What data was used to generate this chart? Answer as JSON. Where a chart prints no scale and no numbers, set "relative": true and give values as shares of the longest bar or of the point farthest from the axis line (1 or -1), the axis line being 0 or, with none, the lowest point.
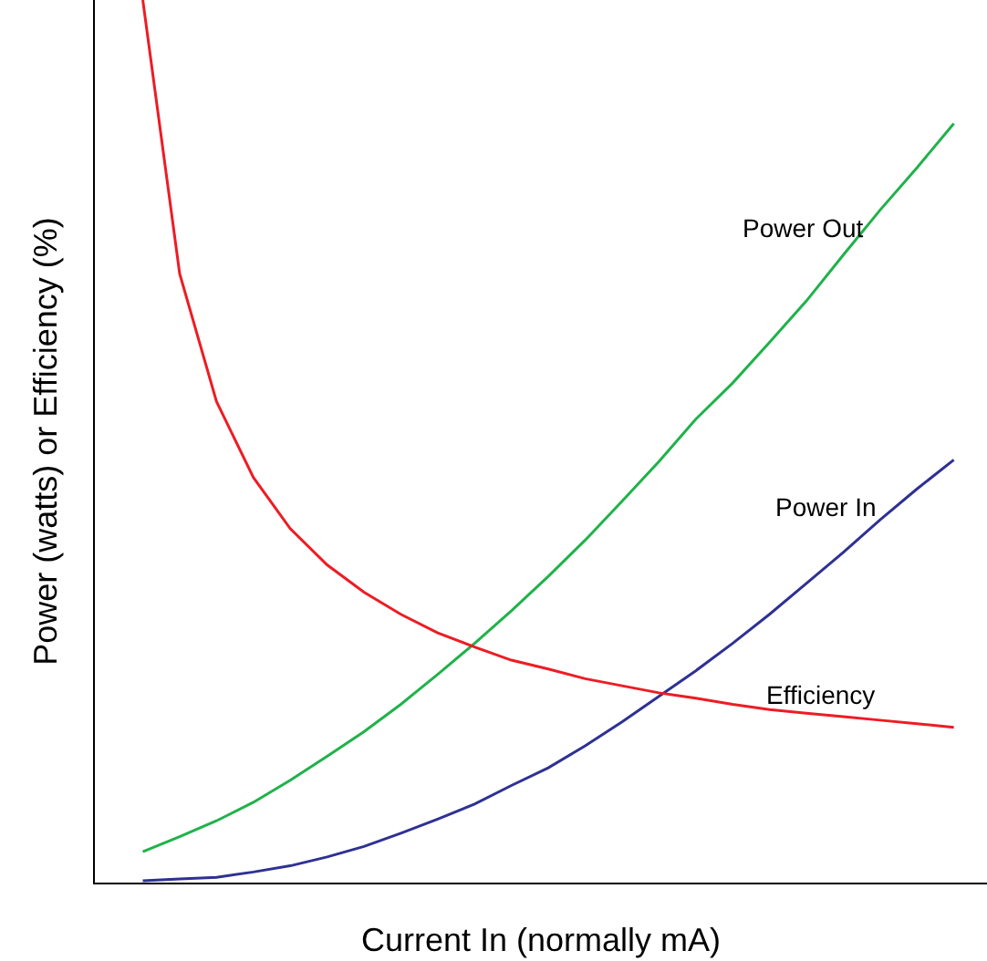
{
  "chart_data": {
    "type": "line",
    "relative": true,
    "xlabel": "Current In (normally mA)",
    "ylabel": "Power (watts) or Efficiency (%)",
    "grid": false,
    "legend": false,
    "marker": "none",
    "line_style": "solid",
    "categories": [
      null,
      null,
      null,
      null,
      null,
      null,
      null,
      null,
      null,
      null,
      null,
      null,
      null,
      null,
      null,
      null,
      null,
      null,
      null,
      null,
      null,
      null,
      null
    ],
    "series": [
      {
        "name": "Power Out",
        "color": "#1fb24a",
        "values": [
          0.035,
          0.052,
          0.07,
          0.091,
          0.116,
          0.143,
          0.171,
          0.202,
          0.236,
          0.271,
          0.308,
          0.347,
          0.388,
          0.432,
          0.477,
          0.525,
          0.566,
          0.612,
          0.659,
          0.711,
          0.762,
          0.81,
          0.86
        ]
      },
      {
        "name": "Power In",
        "color": "#2e3192",
        "values": [
          0.002,
          0.004,
          0.006,
          0.012,
          0.019,
          0.029,
          0.041,
          0.056,
          0.072,
          0.089,
          0.11,
          0.13,
          0.155,
          0.182,
          0.211,
          0.24,
          0.271,
          0.304,
          0.339,
          0.374,
          0.411,
          0.446,
          0.479
        ]
      },
      {
        "name": "Efficiency",
        "color": "#ed1c24",
        "values": [
          1.0,
          0.69,
          0.545,
          0.459,
          0.401,
          0.36,
          0.329,
          0.304,
          0.283,
          0.267,
          0.252,
          0.242,
          0.231,
          0.223,
          0.215,
          0.209,
          0.202,
          0.196,
          0.192,
          0.188,
          0.184,
          0.18,
          0.176
        ]
      }
    ]
  }
}
